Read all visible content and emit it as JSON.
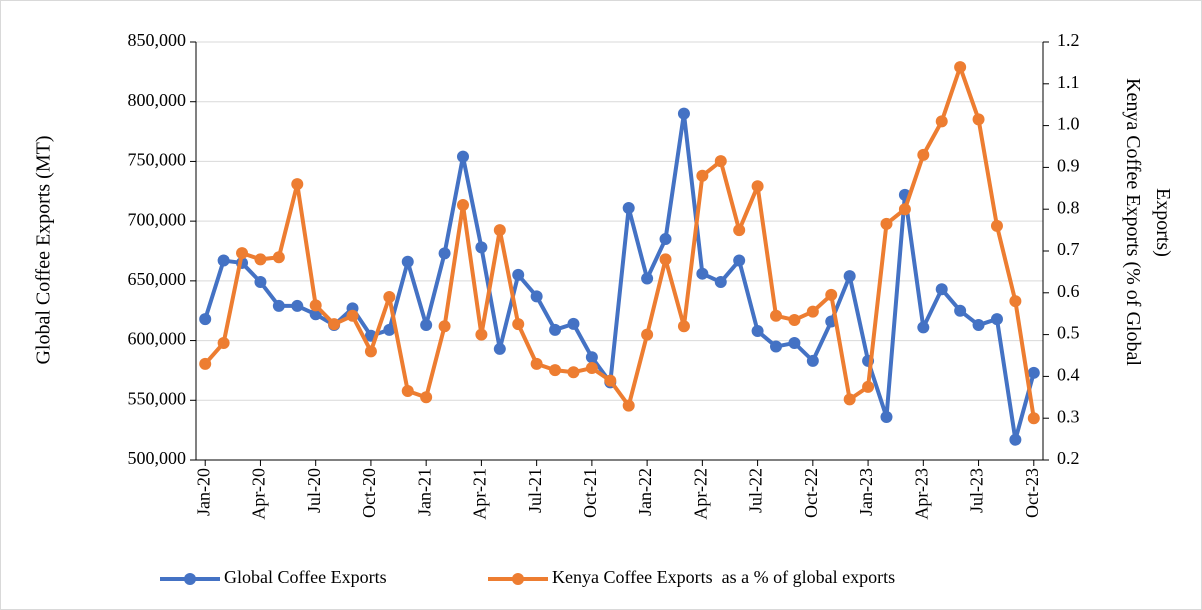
{
  "chart_data": {
    "type": "line",
    "categories": [
      "Jan-20",
      null,
      null,
      "Apr-20",
      null,
      null,
      "Jul-20",
      null,
      null,
      "Oct-20",
      null,
      null,
      "Jan-21",
      null,
      null,
      "Apr-21",
      null,
      null,
      "Jul-21",
      null,
      null,
      "Oct-21",
      null,
      null,
      "Jan-22",
      null,
      null,
      "Apr-22",
      null,
      null,
      "Jul-22",
      null,
      null,
      "Oct-22",
      null,
      null,
      "Jan-23",
      null,
      null,
      "Apr-23",
      null,
      null,
      "Jul-23",
      null,
      null,
      "Oct-23"
    ],
    "y_label": "Global Coffee Exports (MT)",
    "y2_label": "Kenya Coffee Exports (% of Global Exports)",
    "ylim": [
      500000,
      850000
    ],
    "yticks": [
      {
        "value": 500000,
        "label": "500,000"
      },
      {
        "value": 550000,
        "label": "550,000"
      },
      {
        "value": 600000,
        "label": "600,000"
      },
      {
        "value": 650000,
        "label": "650,000"
      },
      {
        "value": 700000,
        "label": "700,000"
      },
      {
        "value": 750000,
        "label": "750,000"
      },
      {
        "value": 800000,
        "label": "800,000"
      },
      {
        "value": 850000,
        "label": "850,000"
      }
    ],
    "y2lim": [
      0.2,
      1.2
    ],
    "y2ticks": [
      0.2,
      0.3,
      0.4,
      0.5,
      0.6,
      0.7,
      0.8,
      0.9,
      {
        "value": 1,
        "label": "1.0"
      },
      1.1,
      1.2
    ],
    "grid": true,
    "legend": "bottom",
    "series": [
      {
        "name": "Global Coffee Exports",
        "color": "#4472c4",
        "values": [
          618000,
          667000,
          665000,
          649000,
          629000,
          629000,
          622000,
          613000,
          627000,
          604000,
          609000,
          666000,
          613000,
          673000,
          754000,
          678000,
          593000,
          655000,
          637000,
          609000,
          614000,
          586000,
          565000,
          711000,
          652000,
          685000,
          790000,
          656000,
          649000,
          667000,
          608000,
          595000,
          598000,
          583000,
          616000,
          654000,
          583000,
          536000,
          722000,
          611000,
          643000,
          625000,
          613000,
          618000,
          517000,
          573000
        ]
      },
      {
        "name": "Kenya Coffee Exports  as a % of global exports",
        "color": "#ed7d31",
        "axis": "y2",
        "values": [
          0.43,
          0.48,
          0.695,
          0.68,
          0.685,
          0.86,
          0.57,
          0.525,
          0.545,
          0.46,
          0.59,
          0.365,
          0.35,
          0.52,
          0.81,
          0.5,
          0.75,
          0.525,
          0.43,
          0.415,
          0.41,
          0.42,
          0.39,
          0.33,
          0.5,
          0.68,
          0.52,
          0.88,
          0.915,
          0.75,
          0.855,
          0.545,
          0.535,
          0.555,
          0.595,
          0.345,
          0.375,
          0.765,
          0.8,
          0.93,
          1.01,
          1.14,
          1.015,
          0.76,
          0.58,
          0.3
        ]
      }
    ]
  }
}
